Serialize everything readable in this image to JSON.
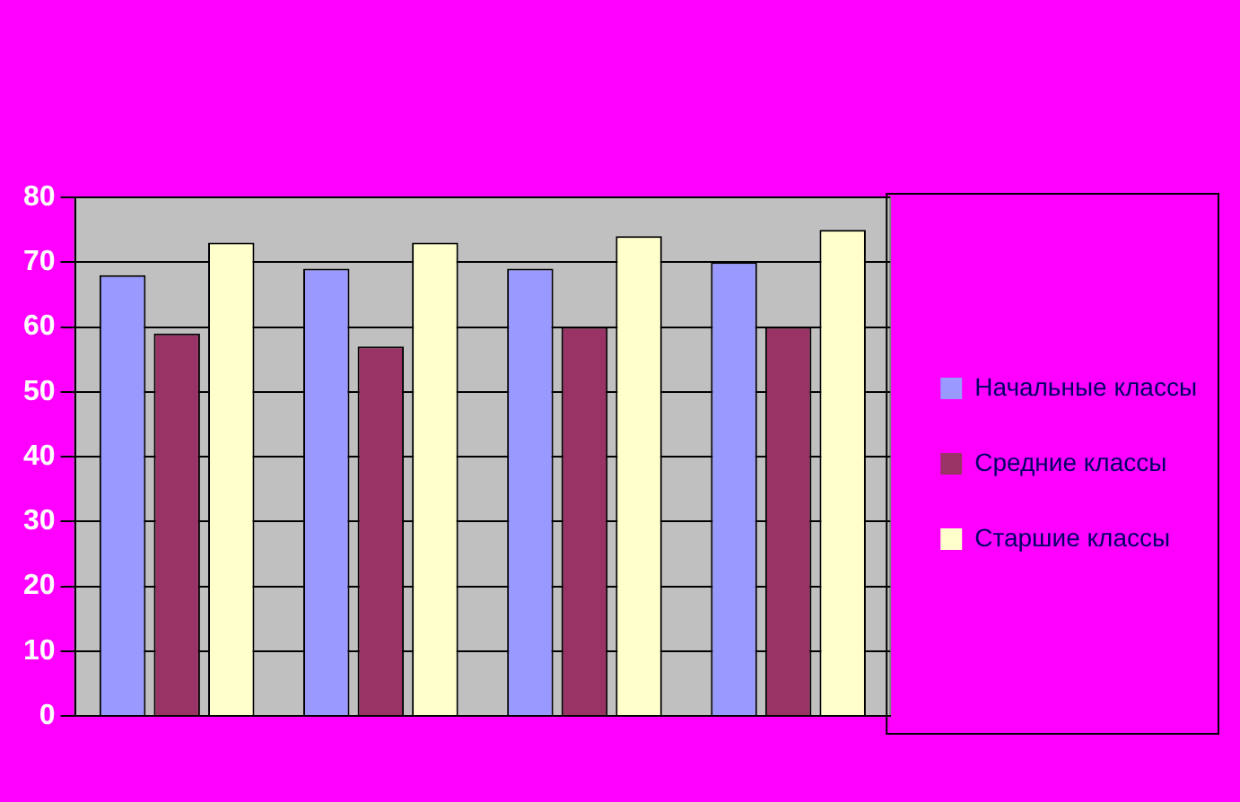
{
  "chart_data": {
    "type": "bar",
    "categories": [
      null,
      null,
      null,
      null
    ],
    "series": [
      {
        "name": "Начальные классы",
        "color": "#9999ff",
        "values": [
          68,
          69,
          69,
          70
        ]
      },
      {
        "name": "Средние классы",
        "color": "#993366",
        "values": [
          59,
          57,
          60,
          60
        ]
      },
      {
        "name": "Старшие классы",
        "color": "#ffffcc",
        "values": [
          73,
          73,
          74,
          75
        ]
      }
    ],
    "ylim": [
      0,
      80
    ],
    "yticks": [
      0,
      10,
      20,
      30,
      40,
      50,
      60,
      70,
      80
    ],
    "grid": "y",
    "legend": "right"
  }
}
